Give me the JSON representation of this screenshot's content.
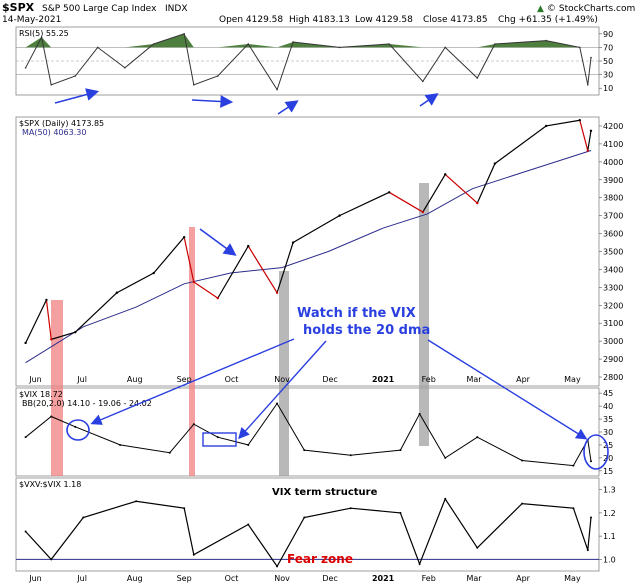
{
  "header": {
    "symbol": "$SPX",
    "name": "S&P 500 Large Cap Index",
    "exchange": "INDX",
    "date": "14-May-2021",
    "open": "Open 4129.58",
    "high": "High 4183.13",
    "low": "Low 4129.58",
    "close": "Close 4173.85",
    "chg": "Chg +61.35 (+1.49%)",
    "brand": "© StockCharts.com",
    "brand_arrow": "▲"
  },
  "rsi": {
    "legend": "RSI(5) 55.25",
    "ticks": [
      "90",
      "70",
      "50",
      "30",
      "10"
    ]
  },
  "price": {
    "legend": "$SPX (Daily) 4173.85",
    "ma_legend": "MA(50) 4063.30",
    "ticks": [
      "4200",
      "4100",
      "4000",
      "3900",
      "3800",
      "3700",
      "3600",
      "3500",
      "3400",
      "3300",
      "3200",
      "3100",
      "3000",
      "2900",
      "2800"
    ]
  },
  "vix": {
    "legend": "$VIX 18.72",
    "bb_legend": "BB(20,2.0) 14.10 - 19.06 - 24.02",
    "ticks": [
      "45",
      "40",
      "35",
      "30",
      "25",
      "20",
      "15"
    ]
  },
  "term": {
    "legend": "$VXV:$VIX 1.18",
    "title": "VIX term structure",
    "fear": "Fear zone",
    "ticks": [
      "1.3",
      "1.2",
      "1.1",
      "1.0"
    ]
  },
  "x_ticks": [
    "Jun",
    "Jul",
    "Aug",
    "Sep",
    "Oct",
    "Nov",
    "Dec",
    "2021",
    "Feb",
    "Mar",
    "Apr",
    "May"
  ],
  "annotation": {
    "line1": "Watch if the VIX",
    "line2": "holds the 20 dma"
  },
  "colors": {
    "price_up": "#000000",
    "price_down": "#cc0000",
    "ma": "#2c2c8c",
    "rsi_fill": "#4f7f3f",
    "arrow": "#2a3fe0",
    "red_band": "#f08080",
    "gray_band": "#a0a0a0",
    "fear": "#dd0000"
  },
  "chart_data": [
    {
      "type": "line",
      "title": "RSI(5)",
      "ylim": [
        0,
        100
      ],
      "x": [
        "2020-05-26",
        "2020-06-05",
        "2020-06-11",
        "2020-06-26",
        "2020-07-10",
        "2020-07-27",
        "2020-08-14",
        "2020-09-02",
        "2020-09-08",
        "2020-09-23",
        "2020-10-12",
        "2020-10-30",
        "2020-11-09",
        "2020-12-08",
        "2021-01-08",
        "2021-01-29",
        "2021-02-12",
        "2021-03-04",
        "2021-03-15",
        "2021-04-16",
        "2021-05-07",
        "2021-05-12",
        "2021-05-14"
      ],
      "values": [
        40,
        85,
        15,
        28,
        70,
        40,
        75,
        90,
        15,
        28,
        75,
        8,
        78,
        70,
        75,
        20,
        70,
        25,
        75,
        80,
        70,
        15,
        55
      ]
    },
    {
      "type": "line",
      "title": "$SPX (Daily)",
      "ylim": [
        2750,
        4250
      ],
      "x": [
        "2020-05-26",
        "2020-06-08",
        "2020-06-11",
        "2020-06-26",
        "2020-07-22",
        "2020-08-14",
        "2020-09-02",
        "2020-09-08",
        "2020-09-23",
        "2020-10-12",
        "2020-10-30",
        "2020-11-09",
        "2020-12-08",
        "2021-01-08",
        "2021-01-29",
        "2021-02-12",
        "2021-03-04",
        "2021-03-15",
        "2021-04-16",
        "2021-05-07",
        "2021-05-12",
        "2021-05-14"
      ],
      "values": [
        2990,
        3230,
        3010,
        3050,
        3270,
        3380,
        3580,
        3330,
        3240,
        3530,
        3270,
        3550,
        3700,
        3830,
        3720,
        3930,
        3770,
        3990,
        4200,
        4232,
        4063,
        4173
      ],
      "series": [
        {
          "name": "MA(50)",
          "x": [
            "2020-05-26",
            "2020-07-01",
            "2020-08-03",
            "2020-09-02",
            "2020-10-01",
            "2020-11-02",
            "2020-12-01",
            "2021-01-04",
            "2021-02-01",
            "2021-03-01",
            "2021-04-01",
            "2021-05-14"
          ],
          "values": [
            2880,
            3080,
            3190,
            3320,
            3380,
            3410,
            3500,
            3630,
            3710,
            3850,
            3940,
            4063
          ]
        }
      ]
    },
    {
      "type": "line",
      "title": "$VIX",
      "ylim": [
        13,
        47
      ],
      "x": [
        "2020-05-26",
        "2020-06-11",
        "2020-06-26",
        "2020-07-24",
        "2020-08-24",
        "2020-09-08",
        "2020-09-23",
        "2020-10-12",
        "2020-10-30",
        "2020-11-16",
        "2020-12-15",
        "2021-01-15",
        "2021-01-27",
        "2021-02-12",
        "2021-03-04",
        "2021-04-01",
        "2021-05-03",
        "2021-05-12",
        "2021-05-14"
      ],
      "values": [
        28,
        36,
        32,
        25,
        22,
        33,
        28,
        25,
        41,
        23,
        21,
        23,
        37,
        20,
        28,
        19,
        17,
        27,
        18.72
      ]
    },
    {
      "type": "line",
      "title": "$VXV:$VIX",
      "ylim": [
        0.95,
        1.35
      ],
      "x": [
        "2020-05-26",
        "2020-06-11",
        "2020-07-01",
        "2020-08-03",
        "2020-09-02",
        "2020-09-08",
        "2020-10-12",
        "2020-10-30",
        "2020-11-16",
        "2020-12-15",
        "2021-01-15",
        "2021-01-27",
        "2021-02-12",
        "2021-03-04",
        "2021-04-01",
        "2021-05-03",
        "2021-05-12",
        "2021-05-14"
      ],
      "values": [
        1.12,
        1.0,
        1.18,
        1.25,
        1.22,
        1.02,
        1.15,
        0.97,
        1.18,
        1.22,
        1.2,
        0.98,
        1.26,
        1.05,
        1.24,
        1.22,
        1.04,
        1.18
      ]
    }
  ]
}
